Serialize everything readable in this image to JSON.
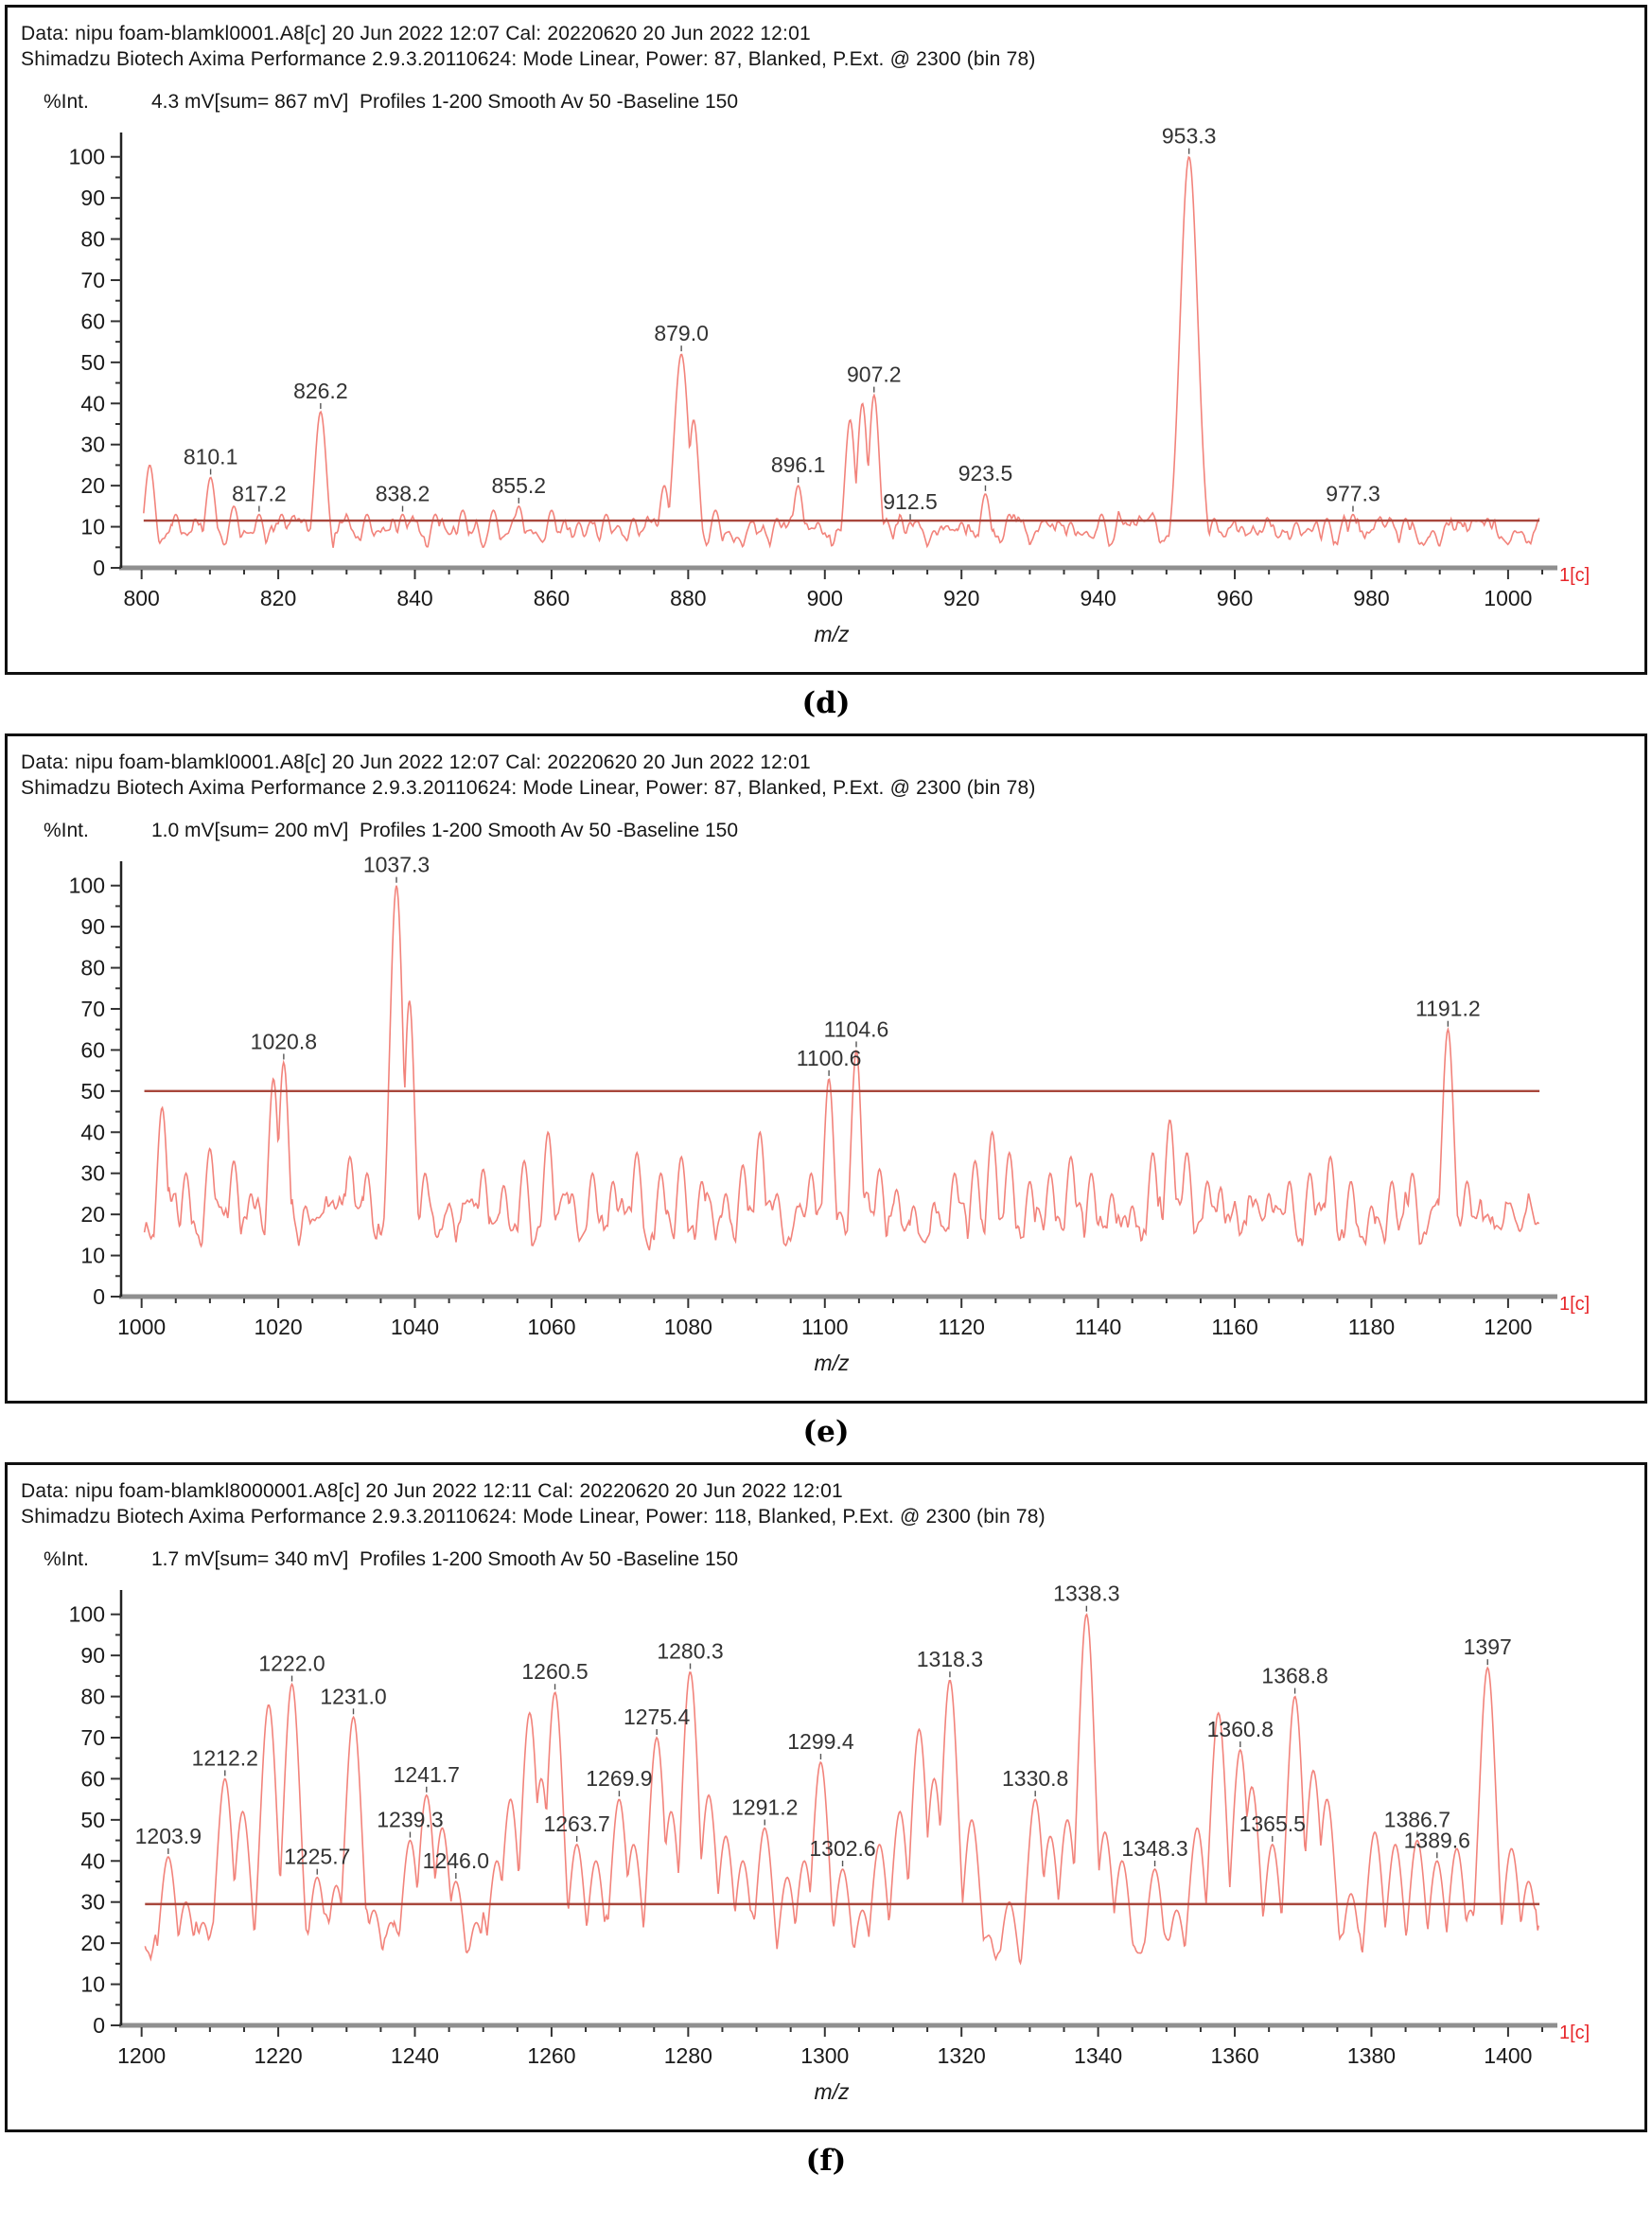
{
  "colors": {
    "trace": "#f2837b",
    "threshold": "#a8473c",
    "marker": "#e8262a",
    "axis_y": "#222222",
    "axis_x": "#8f8f8f",
    "tick": "#333333",
    "text": "#1a1a1a",
    "peak_label": "#333333"
  },
  "plots": [
    {
      "id": "d",
      "caption": "(d)",
      "header_line1": "Data: nipu foam-blamkl0001.A8[c] 20 Jun 2022 12:07 Cal: 20220620 20 Jun 2022 12:01",
      "header_line2": "Shimadzu Biotech Axima Performance 2.9.3.20110624: Mode Linear, Power: 87, Blanked, P.Ext. @ 2300 (bin 78)",
      "y_axis_label": "%Int.",
      "info_line": "4.3 mV[sum= 867 mV]  Profiles 1-200 Smooth Av 50 -Baseline 150",
      "marker": "1[c]",
      "chart_data": {
        "type": "line",
        "xlabel": "m/z",
        "x_range": [
          797,
          1005
        ],
        "x_ticks": [
          800,
          820,
          840,
          860,
          880,
          900,
          920,
          940,
          960,
          980,
          1000
        ],
        "x_minor_step": 5,
        "ylim": [
          0,
          105
        ],
        "y_ticks": [
          0,
          10,
          20,
          30,
          40,
          50,
          60,
          70,
          80,
          90,
          100
        ],
        "y_minor_step": 5,
        "threshold": 11.5,
        "noise": {
          "seed": 11,
          "base": 4.0,
          "amp": 7.5
        },
        "sigma": 0.8,
        "trace_start": 800.3,
        "peaks": [
          {
            "mz": 810.1,
            "v": 22,
            "label": "810.1"
          },
          {
            "mz": 817.2,
            "v": 13,
            "label": "817.2"
          },
          {
            "mz": 826.2,
            "v": 38,
            "label": "826.2",
            "s": 0.9
          },
          {
            "mz": 838.2,
            "v": 13,
            "label": "838.2"
          },
          {
            "mz": 855.2,
            "v": 15,
            "label": "855.2"
          },
          {
            "mz": 879.0,
            "v": 52,
            "label": "879.0",
            "s": 1.1
          },
          {
            "mz": 896.1,
            "v": 20,
            "label": "896.1"
          },
          {
            "mz": 907.2,
            "v": 42,
            "label": "907.2"
          },
          {
            "mz": 912.5,
            "v": 11,
            "label": "912.5"
          },
          {
            "mz": 923.5,
            "v": 18,
            "label": "923.5"
          },
          {
            "mz": 953.3,
            "v": 100,
            "label": "953.3",
            "s": 1.3
          },
          {
            "mz": 977.3,
            "v": 13,
            "label": "977.3"
          }
        ],
        "extra_peaks": [
          {
            "mz": 801.2,
            "v": 25
          },
          {
            "mz": 805,
            "v": 13
          },
          {
            "mz": 813.5,
            "v": 15
          },
          {
            "mz": 820.5,
            "v": 13
          },
          {
            "mz": 823,
            "v": 12
          },
          {
            "mz": 830,
            "v": 11
          },
          {
            "mz": 833,
            "v": 13
          },
          {
            "mz": 843,
            "v": 13
          },
          {
            "mz": 847,
            "v": 14
          },
          {
            "mz": 851.5,
            "v": 14
          },
          {
            "mz": 860,
            "v": 14
          },
          {
            "mz": 864,
            "v": 11
          },
          {
            "mz": 868,
            "v": 13
          },
          {
            "mz": 872,
            "v": 12
          },
          {
            "mz": 876.5,
            "v": 20
          },
          {
            "mz": 880.8,
            "v": 36
          },
          {
            "mz": 884,
            "v": 14
          },
          {
            "mz": 889,
            "v": 10
          },
          {
            "mz": 893,
            "v": 12
          },
          {
            "mz": 899,
            "v": 11
          },
          {
            "mz": 903.7,
            "v": 36
          },
          {
            "mz": 905.5,
            "v": 40
          },
          {
            "mz": 916,
            "v": 9
          },
          {
            "mz": 920,
            "v": 11
          },
          {
            "mz": 927,
            "v": 13
          },
          {
            "mz": 931,
            "v": 9
          },
          {
            "mz": 936,
            "v": 11
          },
          {
            "mz": 940.5,
            "v": 13
          },
          {
            "mz": 944,
            "v": 11
          },
          {
            "mz": 948,
            "v": 13
          },
          {
            "mz": 957,
            "v": 12
          },
          {
            "mz": 961,
            "v": 10
          },
          {
            "mz": 965,
            "v": 9
          },
          {
            "mz": 969,
            "v": 11
          },
          {
            "mz": 973.5,
            "v": 12
          },
          {
            "mz": 981,
            "v": 11
          },
          {
            "mz": 985,
            "v": 12
          },
          {
            "mz": 989,
            "v": 9
          },
          {
            "mz": 993,
            "v": 11
          },
          {
            "mz": 997,
            "v": 12
          },
          {
            "mz": 1001,
            "v": 9
          },
          {
            "mz": 1004,
            "v": 7
          }
        ]
      }
    },
    {
      "id": "e",
      "caption": "(e)",
      "header_line1": "Data: nipu foam-blamkl0001.A8[c] 20 Jun 2022 12:07 Cal: 20220620 20 Jun 2022 12:01",
      "header_line2": "Shimadzu Biotech Axima Performance 2.9.3.20110624: Mode Linear, Power: 87, Blanked, P.Ext. @ 2300 (bin 78)",
      "y_axis_label": "%Int.",
      "info_line": "1.0 mV[sum= 200 mV]  Profiles 1-200 Smooth Av 50 -Baseline 150",
      "marker": "1[c]",
      "chart_data": {
        "type": "line",
        "xlabel": "m/z",
        "x_range": [
          997,
          1205
        ],
        "x_ticks": [
          1000,
          1020,
          1040,
          1060,
          1080,
          1100,
          1120,
          1140,
          1160,
          1180,
          1200
        ],
        "x_minor_step": 5,
        "ylim": [
          0,
          105
        ],
        "y_ticks": [
          0,
          10,
          20,
          30,
          40,
          50,
          60,
          70,
          80,
          90,
          100
        ],
        "y_minor_step": 5,
        "threshold": 50,
        "noise": {
          "seed": 23,
          "base": 10,
          "amp": 13
        },
        "sigma": 0.8,
        "trace_start": 1000.4,
        "peaks": [
          {
            "mz": 1020.8,
            "v": 57,
            "label": "1020.8"
          },
          {
            "mz": 1037.3,
            "v": 100,
            "label": "1037.3",
            "s": 1.0
          },
          {
            "mz": 1100.6,
            "v": 53,
            "label": "1100.6"
          },
          {
            "mz": 1104.6,
            "v": 60,
            "label": "1104.6"
          },
          {
            "mz": 1191.2,
            "v": 65,
            "label": "1191.2",
            "s": 0.9
          }
        ],
        "extra_peaks": [
          {
            "mz": 1003,
            "v": 46
          },
          {
            "mz": 1006.5,
            "v": 30
          },
          {
            "mz": 1010,
            "v": 36
          },
          {
            "mz": 1013.5,
            "v": 33
          },
          {
            "mz": 1016,
            "v": 25
          },
          {
            "mz": 1019.3,
            "v": 53
          },
          {
            "mz": 1024,
            "v": 22
          },
          {
            "mz": 1027,
            "v": 20
          },
          {
            "mz": 1030.5,
            "v": 34
          },
          {
            "mz": 1033,
            "v": 30
          },
          {
            "mz": 1039.2,
            "v": 72
          },
          {
            "mz": 1041.5,
            "v": 30
          },
          {
            "mz": 1047,
            "v": 20
          },
          {
            "mz": 1050,
            "v": 31
          },
          {
            "mz": 1053,
            "v": 27
          },
          {
            "mz": 1056,
            "v": 33
          },
          {
            "mz": 1059.5,
            "v": 40
          },
          {
            "mz": 1063,
            "v": 25
          },
          {
            "mz": 1066,
            "v": 30
          },
          {
            "mz": 1069,
            "v": 28
          },
          {
            "mz": 1072.5,
            "v": 35
          },
          {
            "mz": 1076,
            "v": 30
          },
          {
            "mz": 1079,
            "v": 34
          },
          {
            "mz": 1082,
            "v": 28
          },
          {
            "mz": 1085.5,
            "v": 25
          },
          {
            "mz": 1088,
            "v": 32
          },
          {
            "mz": 1090.5,
            "v": 40
          },
          {
            "mz": 1093,
            "v": 25
          },
          {
            "mz": 1096,
            "v": 22
          },
          {
            "mz": 1098,
            "v": 30
          },
          {
            "mz": 1108,
            "v": 31
          },
          {
            "mz": 1110.5,
            "v": 26
          },
          {
            "mz": 1113,
            "v": 22
          },
          {
            "mz": 1116,
            "v": 12
          },
          {
            "mz": 1119,
            "v": 30
          },
          {
            "mz": 1122,
            "v": 33
          },
          {
            "mz": 1124.5,
            "v": 40
          },
          {
            "mz": 1127,
            "v": 35
          },
          {
            "mz": 1130,
            "v": 28
          },
          {
            "mz": 1133,
            "v": 30
          },
          {
            "mz": 1136,
            "v": 34
          },
          {
            "mz": 1139,
            "v": 30
          },
          {
            "mz": 1142,
            "v": 25
          },
          {
            "mz": 1145,
            "v": 22
          },
          {
            "mz": 1148,
            "v": 35
          },
          {
            "mz": 1150.5,
            "v": 43
          },
          {
            "mz": 1153,
            "v": 35
          },
          {
            "mz": 1156,
            "v": 28
          },
          {
            "mz": 1159,
            "v": 20
          },
          {
            "mz": 1162,
            "v": 18
          },
          {
            "mz": 1165,
            "v": 25
          },
          {
            "mz": 1168,
            "v": 28
          },
          {
            "mz": 1171,
            "v": 30
          },
          {
            "mz": 1174,
            "v": 34
          },
          {
            "mz": 1177,
            "v": 28
          },
          {
            "mz": 1180,
            "v": 22
          },
          {
            "mz": 1183,
            "v": 28
          },
          {
            "mz": 1186,
            "v": 30
          },
          {
            "mz": 1194,
            "v": 28
          },
          {
            "mz": 1197,
            "v": 20
          },
          {
            "mz": 1200,
            "v": 17
          },
          {
            "mz": 1203,
            "v": 18
          }
        ]
      }
    },
    {
      "id": "f",
      "caption": "(f)",
      "header_line1": "Data: nipu foam-blamkl8000001.A8[c] 20 Jun 2022 12:11 Cal: 20220620 20 Jun 2022 12:01",
      "header_line2": "Shimadzu Biotech Axima Performance 2.9.3.20110624: Mode Linear, Power: 118, Blanked, P.Ext. @ 2300 (bin 78)",
      "y_axis_label": "%Int.",
      "info_line": "1.7 mV[sum= 340 mV]  Profiles 1-200 Smooth Av 50 -Baseline 150",
      "marker": "1[c]",
      "chart_data": {
        "type": "line",
        "xlabel": "m/z",
        "x_range": [
          1197,
          1405
        ],
        "x_ticks": [
          1200,
          1220,
          1240,
          1260,
          1280,
          1300,
          1320,
          1340,
          1360,
          1380,
          1400
        ],
        "x_minor_step": 5,
        "ylim": [
          0,
          105
        ],
        "y_ticks": [
          0,
          10,
          20,
          30,
          40,
          50,
          60,
          70,
          80,
          90,
          100
        ],
        "y_minor_step": 5,
        "threshold": 29.5,
        "noise": {
          "seed": 37,
          "base": 11,
          "amp": 14
        },
        "sigma": 1.3,
        "trace_start": 1200.5,
        "peaks": [
          {
            "mz": 1203.9,
            "v": 41,
            "label": "1203.9"
          },
          {
            "mz": 1212.2,
            "v": 60,
            "label": "1212.2"
          },
          {
            "mz": 1222.0,
            "v": 83,
            "label": "1222.0"
          },
          {
            "mz": 1225.7,
            "v": 36,
            "label": "1225.7"
          },
          {
            "mz": 1231.0,
            "v": 75,
            "label": "1231.0"
          },
          {
            "mz": 1239.3,
            "v": 45,
            "label": "1239.3"
          },
          {
            "mz": 1241.7,
            "v": 56,
            "label": "1241.7"
          },
          {
            "mz": 1246.0,
            "v": 35,
            "label": "1246.0"
          },
          {
            "mz": 1260.5,
            "v": 81,
            "label": "1260.5"
          },
          {
            "mz": 1263.7,
            "v": 44,
            "label": "1263.7"
          },
          {
            "mz": 1269.9,
            "v": 55,
            "label": "1269.9"
          },
          {
            "mz": 1275.4,
            "v": 70,
            "label": "1275.4"
          },
          {
            "mz": 1280.3,
            "v": 86,
            "label": "1280.3"
          },
          {
            "mz": 1291.2,
            "v": 48,
            "label": "1291.2"
          },
          {
            "mz": 1299.4,
            "v": 64,
            "label": "1299.4"
          },
          {
            "mz": 1302.6,
            "v": 38,
            "label": "1302.6"
          },
          {
            "mz": 1318.3,
            "v": 84,
            "label": "1318.3"
          },
          {
            "mz": 1330.8,
            "v": 55,
            "label": "1330.8"
          },
          {
            "mz": 1338.3,
            "v": 100,
            "label": "1338.3"
          },
          {
            "mz": 1348.3,
            "v": 38,
            "label": "1348.3"
          },
          {
            "mz": 1360.8,
            "v": 67,
            "label": "1360.8"
          },
          {
            "mz": 1365.5,
            "v": 44,
            "label": "1365.5"
          },
          {
            "mz": 1368.8,
            "v": 80,
            "label": "1368.8"
          },
          {
            "mz": 1386.7,
            "v": 45,
            "label": "1386.7"
          },
          {
            "mz": 1389.6,
            "v": 40,
            "label": "1389.6"
          },
          {
            "mz": 1397.0,
            "v": 87,
            "label": "1397"
          }
        ],
        "extra_peaks": [
          {
            "mz": 1206.5,
            "v": 30
          },
          {
            "mz": 1209,
            "v": 25
          },
          {
            "mz": 1214.8,
            "v": 52
          },
          {
            "mz": 1218.6,
            "v": 78
          },
          {
            "mz": 1228.5,
            "v": 34
          },
          {
            "mz": 1234,
            "v": 28
          },
          {
            "mz": 1236.5,
            "v": 25
          },
          {
            "mz": 1244,
            "v": 48
          },
          {
            "mz": 1249,
            "v": 25
          },
          {
            "mz": 1252,
            "v": 40
          },
          {
            "mz": 1254,
            "v": 55
          },
          {
            "mz": 1256.8,
            "v": 76
          },
          {
            "mz": 1258.5,
            "v": 60
          },
          {
            "mz": 1266.5,
            "v": 40
          },
          {
            "mz": 1272,
            "v": 44
          },
          {
            "mz": 1277.5,
            "v": 52
          },
          {
            "mz": 1283,
            "v": 56
          },
          {
            "mz": 1285.5,
            "v": 46
          },
          {
            "mz": 1288,
            "v": 40
          },
          {
            "mz": 1294.5,
            "v": 36
          },
          {
            "mz": 1297,
            "v": 40
          },
          {
            "mz": 1305.5,
            "v": 28
          },
          {
            "mz": 1308,
            "v": 44
          },
          {
            "mz": 1311,
            "v": 52
          },
          {
            "mz": 1313.8,
            "v": 72
          },
          {
            "mz": 1316,
            "v": 60
          },
          {
            "mz": 1321.5,
            "v": 50
          },
          {
            "mz": 1324,
            "v": 14
          },
          {
            "mz": 1327,
            "v": 30
          },
          {
            "mz": 1333,
            "v": 46
          },
          {
            "mz": 1335.5,
            "v": 50
          },
          {
            "mz": 1341,
            "v": 47
          },
          {
            "mz": 1343.5,
            "v": 40
          },
          {
            "mz": 1345.5,
            "v": 18
          },
          {
            "mz": 1351.5,
            "v": 28
          },
          {
            "mz": 1354.5,
            "v": 48
          },
          {
            "mz": 1357.6,
            "v": 76
          },
          {
            "mz": 1362.5,
            "v": 58
          },
          {
            "mz": 1371.5,
            "v": 62
          },
          {
            "mz": 1373.5,
            "v": 55
          },
          {
            "mz": 1377,
            "v": 32
          },
          {
            "mz": 1380.5,
            "v": 47
          },
          {
            "mz": 1383.5,
            "v": 44
          },
          {
            "mz": 1392.5,
            "v": 43
          },
          {
            "mz": 1394.5,
            "v": 28
          },
          {
            "mz": 1400.5,
            "v": 43
          },
          {
            "mz": 1403,
            "v": 35
          }
        ]
      }
    }
  ]
}
